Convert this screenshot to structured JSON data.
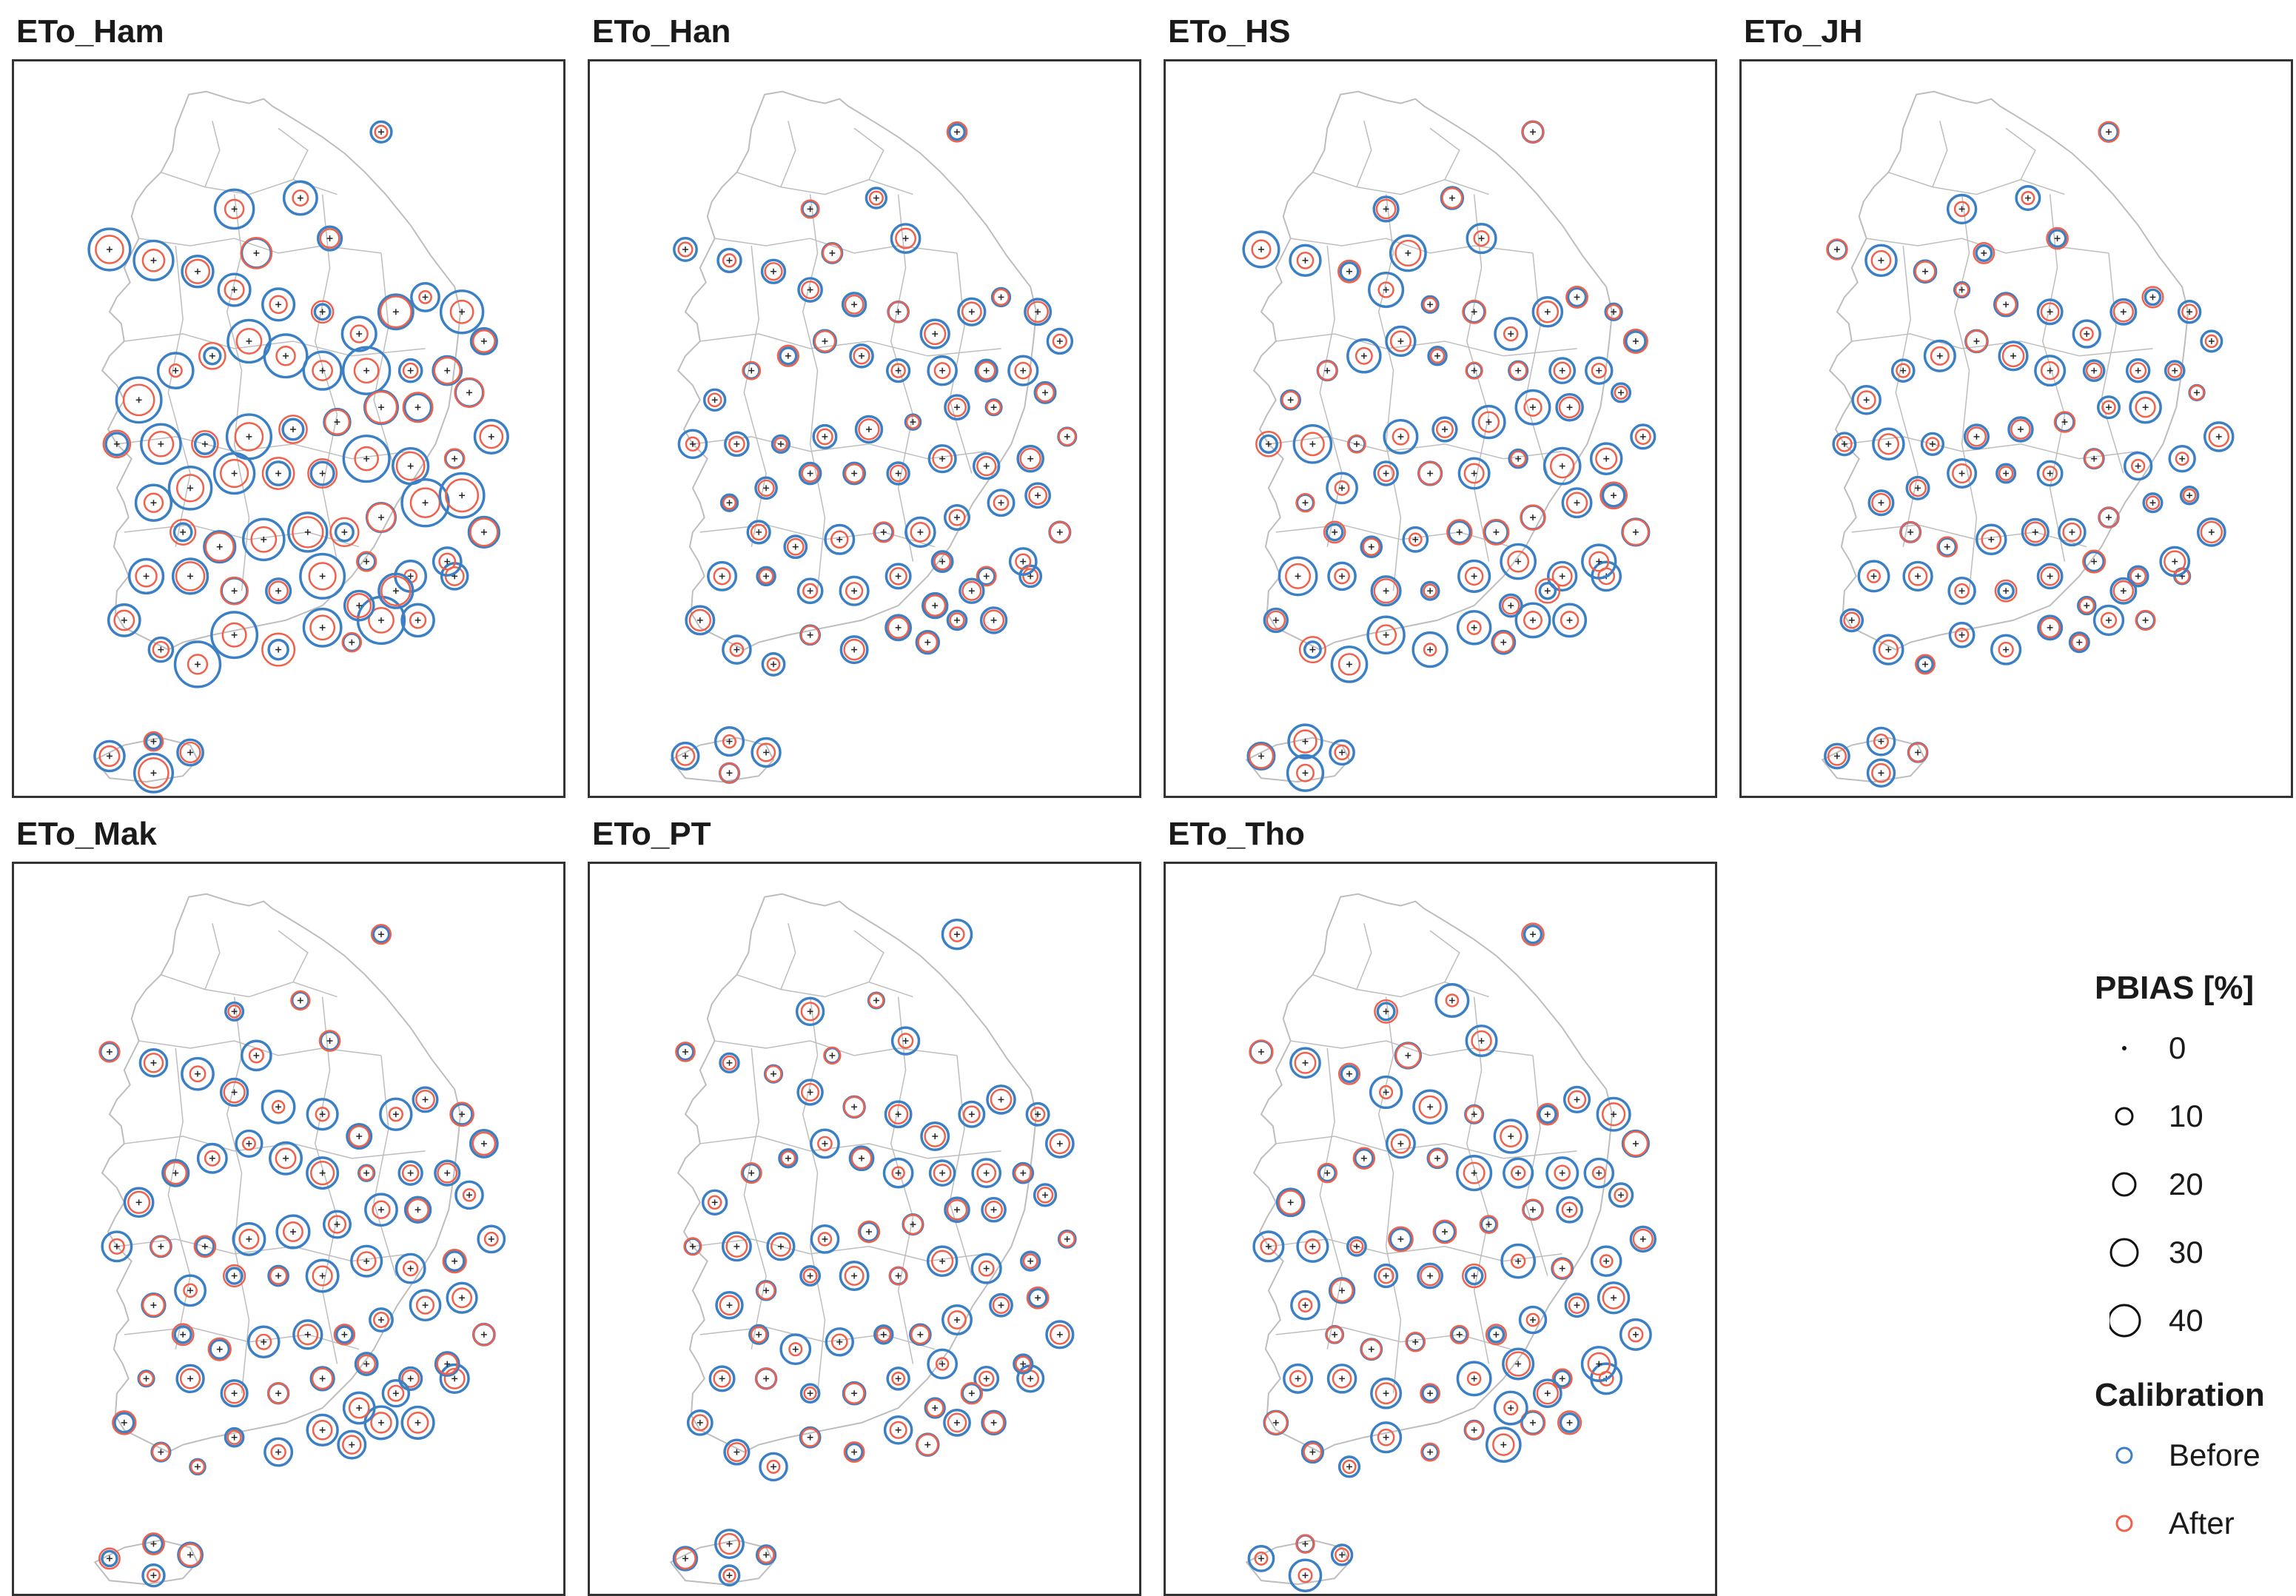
{
  "panels": [
    {
      "id": "ham",
      "title": "ETo_Ham"
    },
    {
      "id": "han",
      "title": "ETo_Han"
    },
    {
      "id": "hs",
      "title": "ETo_HS"
    },
    {
      "id": "jh",
      "title": "ETo_JH"
    },
    {
      "id": "mak",
      "title": "ETo_Mak"
    },
    {
      "id": "pt",
      "title": "ETo_PT"
    },
    {
      "id": "tho",
      "title": "ETo_Tho"
    }
  ],
  "legend": {
    "size_title": "PBIAS [%]",
    "size_items": [
      {
        "label": "0",
        "value": 0
      },
      {
        "label": "10",
        "value": 10
      },
      {
        "label": "20",
        "value": 20
      },
      {
        "label": "30",
        "value": 30
      },
      {
        "label": "40",
        "value": 40
      }
    ],
    "calibration_title": "Calibration",
    "calibration_items": [
      {
        "label": "Before",
        "color": "#3b7fc4"
      },
      {
        "label": "After",
        "color": "#f0604a"
      }
    ]
  },
  "colors": {
    "before": "#3b7fc4",
    "after": "#f0604a",
    "boundary": "#bdbdbd",
    "frame": "#333333"
  }
}
